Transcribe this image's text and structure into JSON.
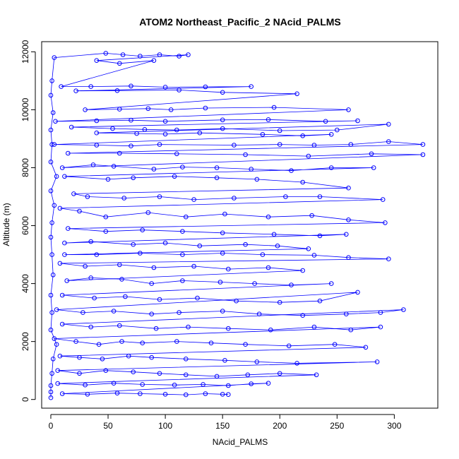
{
  "chart_data": {
    "type": "scatter",
    "title": "ATOM2 Northeast_Pacific_2 NAcid_PALMS",
    "xlabel": "NAcid_PALMS",
    "ylabel": "Altitude (m)",
    "xlim": [
      -8,
      338
    ],
    "ylim": [
      -300,
      12350
    ],
    "x_ticks": [
      0,
      50,
      100,
      150,
      200,
      250,
      300
    ],
    "y_ticks": [
      0,
      2000,
      4000,
      6000,
      8000,
      10000,
      12000
    ],
    "grid": false,
    "legend": "none",
    "series": [
      {
        "color": "#0000ff",
        "marker": "open-circle",
        "connected": true,
        "points": [
          [
            0,
            60
          ],
          [
            0,
            260
          ],
          [
            0,
            480
          ],
          [
            1,
            900
          ],
          [
            2,
            1400
          ],
          [
            5,
            1900
          ],
          [
            0,
            2400
          ],
          [
            1,
            3000
          ],
          [
            0,
            3600
          ],
          [
            2,
            4300
          ],
          [
            1,
            5000
          ],
          [
            0,
            5600
          ],
          [
            1,
            6100
          ],
          [
            3,
            6700
          ],
          [
            0,
            7200
          ],
          [
            5,
            7700
          ],
          [
            0,
            8200
          ],
          [
            1,
            8800
          ],
          [
            0,
            9300
          ],
          [
            2,
            9900
          ],
          [
            0,
            10500
          ],
          [
            1,
            11000
          ],
          [
            3,
            11800
          ],
          [
            48,
            11950
          ],
          [
            63,
            11900
          ],
          [
            78,
            11850
          ],
          [
            95,
            11900
          ],
          [
            112,
            11850
          ],
          [
            120,
            11900
          ],
          [
            40,
            11700
          ],
          [
            60,
            11600
          ],
          [
            90,
            11700
          ],
          [
            9,
            10800
          ],
          [
            35,
            10800
          ],
          [
            70,
            10820
          ],
          [
            100,
            10780
          ],
          [
            135,
            10790
          ],
          [
            175,
            10800
          ],
          [
            22,
            10650
          ],
          [
            58,
            10660
          ],
          [
            112,
            10680
          ],
          [
            150,
            10600
          ],
          [
            215,
            10550
          ],
          [
            30,
            10000
          ],
          [
            60,
            10020
          ],
          [
            85,
            10040
          ],
          [
            105,
            10000
          ],
          [
            135,
            10060
          ],
          [
            195,
            10080
          ],
          [
            260,
            10000
          ],
          [
            4,
            9600
          ],
          [
            40,
            9620
          ],
          [
            70,
            9640
          ],
          [
            100,
            9600
          ],
          [
            150,
            9650
          ],
          [
            190,
            9660
          ],
          [
            240,
            9600
          ],
          [
            268,
            9620
          ],
          [
            18,
            9400
          ],
          [
            54,
            9350
          ],
          [
            82,
            9320
          ],
          [
            110,
            9300
          ],
          [
            150,
            9350
          ],
          [
            200,
            9280
          ],
          [
            250,
            9300
          ],
          [
            295,
            9500
          ],
          [
            40,
            9200
          ],
          [
            75,
            9180
          ],
          [
            100,
            9160
          ],
          [
            130,
            9200
          ],
          [
            185,
            9150
          ],
          [
            220,
            9100
          ],
          [
            245,
            9150
          ],
          [
            3,
            8800
          ],
          [
            40,
            8780
          ],
          [
            70,
            8750
          ],
          [
            95,
            8800
          ],
          [
            160,
            8780
          ],
          [
            200,
            8800
          ],
          [
            230,
            8780
          ],
          [
            262,
            8800
          ],
          [
            295,
            8900
          ],
          [
            325,
            8800
          ],
          [
            15,
            8500
          ],
          [
            60,
            8500
          ],
          [
            110,
            8480
          ],
          [
            170,
            8450
          ],
          [
            225,
            8400
          ],
          [
            280,
            8480
          ],
          [
            325,
            8450
          ],
          [
            10,
            8000
          ],
          [
            37,
            8100
          ],
          [
            55,
            8050
          ],
          [
            90,
            7950
          ],
          [
            115,
            8020
          ],
          [
            145,
            8000
          ],
          [
            175,
            7950
          ],
          [
            210,
            7900
          ],
          [
            245,
            8000
          ],
          [
            282,
            8000
          ],
          [
            12,
            7700
          ],
          [
            50,
            7600
          ],
          [
            72,
            7650
          ],
          [
            108,
            7700
          ],
          [
            145,
            7650
          ],
          [
            180,
            7600
          ],
          [
            220,
            7500
          ],
          [
            260,
            7300
          ],
          [
            20,
            7100
          ],
          [
            32,
            7000
          ],
          [
            64,
            6950
          ],
          [
            95,
            7000
          ],
          [
            125,
            6900
          ],
          [
            160,
            6950
          ],
          [
            205,
            7000
          ],
          [
            235,
            7000
          ],
          [
            290,
            6900
          ],
          [
            8,
            6600
          ],
          [
            25,
            6500
          ],
          [
            48,
            6300
          ],
          [
            85,
            6450
          ],
          [
            118,
            6300
          ],
          [
            152,
            6400
          ],
          [
            190,
            6300
          ],
          [
            228,
            6350
          ],
          [
            260,
            6200
          ],
          [
            292,
            6100
          ],
          [
            15,
            5900
          ],
          [
            48,
            5800
          ],
          [
            80,
            5850
          ],
          [
            115,
            5800
          ],
          [
            150,
            5750
          ],
          [
            195,
            5700
          ],
          [
            235,
            5650
          ],
          [
            258,
            5700
          ],
          [
            12,
            5400
          ],
          [
            35,
            5450
          ],
          [
            72,
            5350
          ],
          [
            100,
            5400
          ],
          [
            130,
            5300
          ],
          [
            170,
            5350
          ],
          [
            198,
            5300
          ],
          [
            225,
            5200
          ],
          [
            12,
            5000
          ],
          [
            40,
            5000
          ],
          [
            78,
            5050
          ],
          [
            115,
            5000
          ],
          [
            150,
            5050
          ],
          [
            185,
            5000
          ],
          [
            230,
            4980
          ],
          [
            260,
            4900
          ],
          [
            295,
            4850
          ],
          [
            8,
            4700
          ],
          [
            30,
            4600
          ],
          [
            60,
            4650
          ],
          [
            90,
            4550
          ],
          [
            125,
            4600
          ],
          [
            155,
            4500
          ],
          [
            190,
            4550
          ],
          [
            220,
            4450
          ],
          [
            14,
            4100
          ],
          [
            35,
            4200
          ],
          [
            62,
            4150
          ],
          [
            88,
            4000
          ],
          [
            115,
            4100
          ],
          [
            148,
            4050
          ],
          [
            178,
            4000
          ],
          [
            210,
            3950
          ],
          [
            245,
            4000
          ],
          [
            10,
            3600
          ],
          [
            38,
            3500
          ],
          [
            65,
            3550
          ],
          [
            95,
            3450
          ],
          [
            128,
            3500
          ],
          [
            162,
            3400
          ],
          [
            200,
            3350
          ],
          [
            235,
            3400
          ],
          [
            268,
            3700
          ],
          [
            5,
            3100
          ],
          [
            28,
            3000
          ],
          [
            55,
            3050
          ],
          [
            88,
            2950
          ],
          [
            112,
            3000
          ],
          [
            150,
            3050
          ],
          [
            182,
            2950
          ],
          [
            220,
            2900
          ],
          [
            258,
            2950
          ],
          [
            288,
            3000
          ],
          [
            308,
            3100
          ],
          [
            10,
            2600
          ],
          [
            35,
            2500
          ],
          [
            60,
            2550
          ],
          [
            92,
            2450
          ],
          [
            120,
            2500
          ],
          [
            155,
            2450
          ],
          [
            192,
            2400
          ],
          [
            230,
            2500
          ],
          [
            262,
            2400
          ],
          [
            288,
            2500
          ],
          [
            3,
            2100
          ],
          [
            22,
            2000
          ],
          [
            42,
            1900
          ],
          [
            62,
            2000
          ],
          [
            80,
            1950
          ],
          [
            110,
            2000
          ],
          [
            140,
            1950
          ],
          [
            170,
            1900
          ],
          [
            208,
            1850
          ],
          [
            248,
            1900
          ],
          [
            275,
            1800
          ],
          [
            8,
            1500
          ],
          [
            25,
            1450
          ],
          [
            45,
            1400
          ],
          [
            68,
            1500
          ],
          [
            88,
            1450
          ],
          [
            118,
            1400
          ],
          [
            152,
            1350
          ],
          [
            180,
            1300
          ],
          [
            215,
            1250
          ],
          [
            285,
            1300
          ],
          [
            6,
            1000
          ],
          [
            25,
            900
          ],
          [
            48,
            1000
          ],
          [
            72,
            950
          ],
          [
            95,
            900
          ],
          [
            118,
            850
          ],
          [
            145,
            800
          ],
          [
            172,
            850
          ],
          [
            200,
            900
          ],
          [
            232,
            850
          ],
          [
            6,
            550
          ],
          [
            30,
            500
          ],
          [
            55,
            560
          ],
          [
            80,
            520
          ],
          [
            108,
            500
          ],
          [
            133,
            520
          ],
          [
            155,
            480
          ],
          [
            175,
            540
          ],
          [
            190,
            560
          ],
          [
            10,
            200
          ],
          [
            32,
            180
          ],
          [
            58,
            220
          ],
          [
            78,
            200
          ],
          [
            100,
            180
          ],
          [
            118,
            160
          ],
          [
            135,
            200
          ],
          [
            150,
            180
          ],
          [
            155,
            170
          ]
        ]
      }
    ]
  }
}
